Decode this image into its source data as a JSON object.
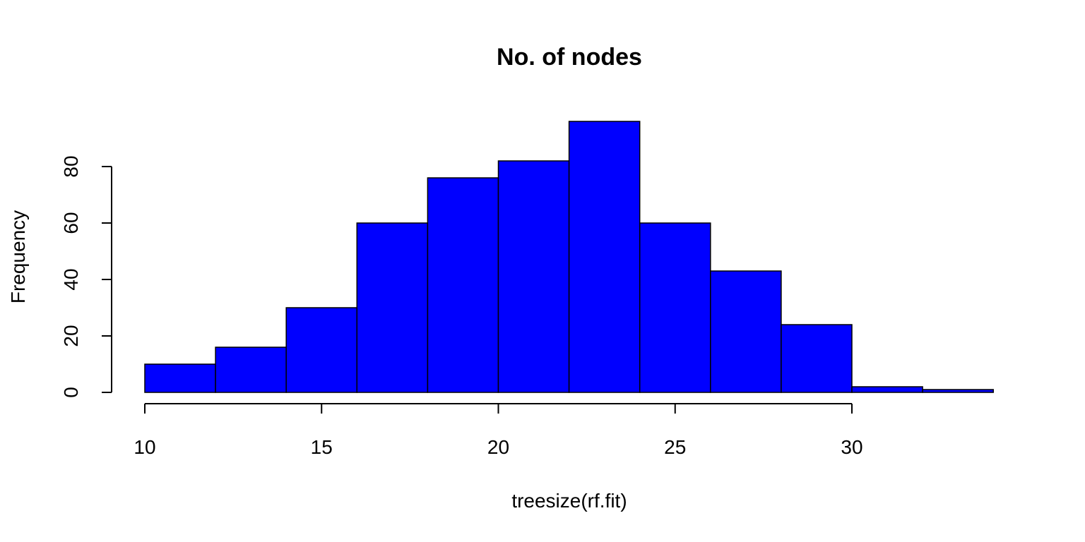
{
  "chart_data": {
    "type": "bar",
    "title": "No. of nodes",
    "xlabel": "treesize(rf.fit)",
    "ylabel": "Frequency",
    "bins": [
      {
        "from": 10,
        "to": 12,
        "count": 10
      },
      {
        "from": 12,
        "to": 14,
        "count": 16
      },
      {
        "from": 14,
        "to": 16,
        "count": 30
      },
      {
        "from": 16,
        "to": 18,
        "count": 60
      },
      {
        "from": 18,
        "to": 20,
        "count": 76
      },
      {
        "from": 20,
        "to": 22,
        "count": 82
      },
      {
        "from": 22,
        "to": 24,
        "count": 96
      },
      {
        "from": 24,
        "to": 26,
        "count": 60
      },
      {
        "from": 26,
        "to": 28,
        "count": 43
      },
      {
        "from": 28,
        "to": 30,
        "count": 24
      },
      {
        "from": 30,
        "to": 32,
        "count": 2
      },
      {
        "from": 32,
        "to": 34,
        "count": 1
      }
    ],
    "xlim": [
      10,
      34
    ],
    "ylim": [
      0,
      96
    ],
    "x_ticks": [
      10,
      15,
      20,
      25,
      30
    ],
    "y_ticks": [
      0,
      20,
      40,
      60,
      80
    ],
    "bar_color": "#0000ff",
    "grid": false,
    "legend": "none"
  }
}
